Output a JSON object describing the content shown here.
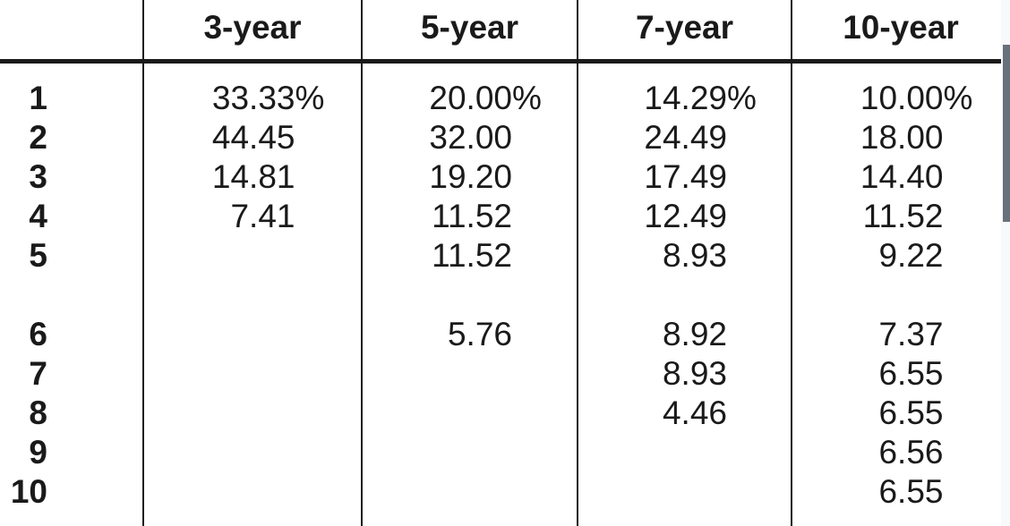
{
  "table": {
    "header": {
      "labels": [
        "",
        "3-year",
        "5-year",
        "7-year",
        "10-year"
      ]
    },
    "rows": [
      {
        "label": "1",
        "cells": [
          {
            "num": "33.33",
            "suffix": "%"
          },
          {
            "num": "20.00",
            "suffix": "%"
          },
          {
            "num": "14.29",
            "suffix": "%"
          },
          {
            "num": "10.00",
            "suffix": "%"
          }
        ]
      },
      {
        "label": "2",
        "cells": [
          {
            "num": "44.45",
            "suffix": ""
          },
          {
            "num": "32.00",
            "suffix": ""
          },
          {
            "num": "24.49",
            "suffix": ""
          },
          {
            "num": "18.00",
            "suffix": ""
          }
        ]
      },
      {
        "label": "3",
        "cells": [
          {
            "num": "14.81",
            "suffix": ""
          },
          {
            "num": "19.20",
            "suffix": ""
          },
          {
            "num": "17.49",
            "suffix": ""
          },
          {
            "num": "14.40",
            "suffix": ""
          }
        ]
      },
      {
        "label": "4",
        "cells": [
          {
            "num": "7.41",
            "suffix": ""
          },
          {
            "num": "11.52",
            "suffix": ""
          },
          {
            "num": "12.49",
            "suffix": ""
          },
          {
            "num": "11.52",
            "suffix": ""
          }
        ]
      },
      {
        "label": "5",
        "cells": [
          {
            "num": "",
            "suffix": ""
          },
          {
            "num": "11.52",
            "suffix": ""
          },
          {
            "num": "8.93",
            "suffix": ""
          },
          {
            "num": "9.22",
            "suffix": ""
          }
        ]
      },
      {
        "spacer": true
      },
      {
        "label": "6",
        "cells": [
          {
            "num": "",
            "suffix": ""
          },
          {
            "num": "5.76",
            "suffix": ""
          },
          {
            "num": "8.92",
            "suffix": ""
          },
          {
            "num": "7.37",
            "suffix": ""
          }
        ]
      },
      {
        "label": "7",
        "cells": [
          {
            "num": "",
            "suffix": ""
          },
          {
            "num": "",
            "suffix": ""
          },
          {
            "num": "8.93",
            "suffix": ""
          },
          {
            "num": "6.55",
            "suffix": ""
          }
        ]
      },
      {
        "label": "8",
        "cells": [
          {
            "num": "",
            "suffix": ""
          },
          {
            "num": "",
            "suffix": ""
          },
          {
            "num": "4.46",
            "suffix": ""
          },
          {
            "num": "6.55",
            "suffix": ""
          }
        ]
      },
      {
        "label": "9",
        "cells": [
          {
            "num": "",
            "suffix": ""
          },
          {
            "num": "",
            "suffix": ""
          },
          {
            "num": "",
            "suffix": ""
          },
          {
            "num": "6.56",
            "suffix": ""
          }
        ]
      },
      {
        "label": "10",
        "cells": [
          {
            "num": "",
            "suffix": ""
          },
          {
            "num": "",
            "suffix": ""
          },
          {
            "num": "",
            "suffix": ""
          },
          {
            "num": "6.55",
            "suffix": ""
          }
        ]
      }
    ]
  },
  "colors": {
    "ink": "#1a1a1a",
    "background": "#ffffff",
    "scrollbar_track": "#f7f9fa",
    "scrollbar_thumb": "#68707b"
  }
}
